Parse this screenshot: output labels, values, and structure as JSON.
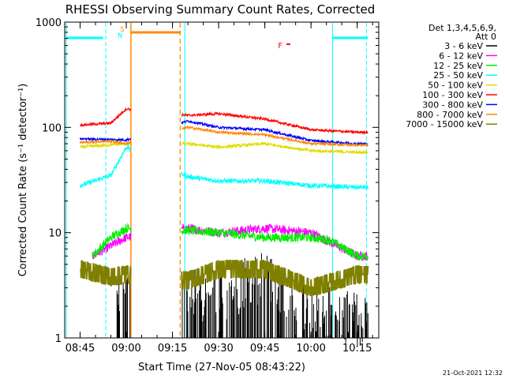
{
  "chart_data": {
    "type": "line",
    "title": "RHESSI Observing Summary Count Rates, Corrected",
    "xlabel": "Start Time (27-Nov-05 08:43:22)",
    "ylabel": "Corrected Count Rate (s⁻¹ detector⁻¹)",
    "y_scale": "log",
    "ylim": [
      1,
      1000
    ],
    "xlim": [
      "08:40",
      "10:22"
    ],
    "x_ticks": [
      "08:45",
      "09:00",
      "09:15",
      "09:30",
      "09:45",
      "10:00",
      "10:15"
    ],
    "y_ticks": [
      "1",
      "10",
      "100",
      "1000"
    ],
    "legend_title": "Det 1,3,4,5,6,9,",
    "legend_subtitle": "Att 0",
    "timestamp": "21-Oct-2021 12:32",
    "flag_labels": {
      "s": "S",
      "n": "N",
      "f": "F"
    },
    "data_gaps": [
      [
        "09:01:30",
        "09:17:30"
      ]
    ],
    "series": [
      {
        "name": "3 - 6 keV",
        "color": "#000000",
        "x": [
          "09:00",
          "09:17",
          "09:30",
          "09:45",
          "10:00",
          "10:15"
        ],
        "values": [
          1.5,
          2,
          2,
          3,
          1.5,
          1.2
        ]
      },
      {
        "name": "6 - 12 keV",
        "color": "#ff00ff",
        "x": [
          "08:49",
          "09:00",
          "09:20",
          "09:30",
          "09:45",
          "10:00",
          "10:15"
        ],
        "values": [
          6,
          9,
          11,
          10,
          11,
          10,
          6
        ]
      },
      {
        "name": "12 - 25 keV",
        "color": "#00ee00",
        "x": [
          "08:49",
          "08:55",
          "09:00",
          "09:20",
          "09:30",
          "09:45",
          "10:00",
          "10:06",
          "10:15"
        ],
        "values": [
          6,
          9,
          11,
          10.5,
          10,
          9,
          9,
          8.5,
          6
        ]
      },
      {
        "name": "25 - 50 keV",
        "color": "#00ffff",
        "x": [
          "08:45",
          "08:55",
          "09:00",
          "09:20",
          "09:30",
          "09:45",
          "10:00",
          "10:15"
        ],
        "values": [
          28,
          35,
          65,
          34,
          31,
          31,
          28,
          27
        ]
      },
      {
        "name": "50 - 100 keV",
        "color": "#dddd00",
        "x": [
          "08:45",
          "09:00",
          "09:20",
          "09:30",
          "09:45",
          "10:00",
          "10:15"
        ],
        "values": [
          65,
          70,
          70,
          65,
          70,
          60,
          58
        ]
      },
      {
        "name": "100 - 300 keV",
        "color": "#ff0000",
        "x": [
          "08:45",
          "08:55",
          "09:00",
          "09:20",
          "09:30",
          "09:45",
          "10:00",
          "10:15"
        ],
        "values": [
          105,
          110,
          150,
          130,
          135,
          120,
          95,
          90
        ]
      },
      {
        "name": "300 - 800 keV",
        "color": "#0000ff",
        "x": [
          "08:45",
          "09:00",
          "09:20",
          "09:30",
          "09:45",
          "10:00",
          "10:15"
        ],
        "values": [
          78,
          76,
          115,
          100,
          95,
          75,
          70
        ]
      },
      {
        "name": "800 - 7000 keV",
        "color": "#ff8800",
        "x": [
          "08:45",
          "08:55",
          "09:00",
          "09:20",
          "09:30",
          "09:45",
          "10:00",
          "10:15"
        ],
        "values": [
          72,
          74,
          70,
          100,
          90,
          85,
          70,
          68
        ]
      },
      {
        "name": "7000 - 15000 keV",
        "color": "#808000",
        "x": [
          "08:45",
          "08:55",
          "09:00",
          "09:20",
          "09:30",
          "09:45",
          "10:00",
          "10:15"
        ],
        "values": [
          4.5,
          3.8,
          4,
          3.5,
          4.5,
          4.5,
          3,
          4
        ]
      }
    ]
  }
}
